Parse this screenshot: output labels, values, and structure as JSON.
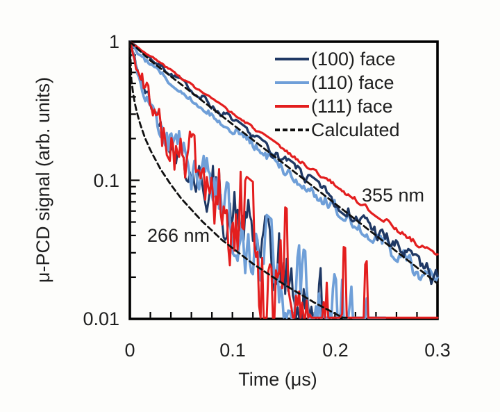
{
  "figure": {
    "background": "#fdfdfb",
    "text_color": "#1f1f1f",
    "frame_color": "#000000"
  },
  "chart_data": {
    "type": "line",
    "title": "",
    "xlabel": "Time (μs)",
    "ylabel": "μ-PCD signal (arb. units)",
    "x_axis": {
      "min": 0,
      "max": 0.3,
      "minor_tick_step": 0.02,
      "tick_labels": [
        {
          "value": 0,
          "label": "0"
        },
        {
          "value": 0.1,
          "label": "0.1"
        },
        {
          "value": 0.2,
          "label": "0.2"
        },
        {
          "value": 0.3,
          "label": "0.3"
        }
      ]
    },
    "y_axis": {
      "scale": "log",
      "min": 0.01,
      "max": 1,
      "tick_labels": [
        {
          "value": 1,
          "label": "1"
        },
        {
          "value": 0.1,
          "label": "0.1"
        },
        {
          "value": 0.01,
          "label": "0.01"
        }
      ],
      "minor_ticks": [
        0.9,
        0.8,
        0.7,
        0.6,
        0.5,
        0.4,
        0.3,
        0.2,
        0.09,
        0.08,
        0.07,
        0.06,
        0.05,
        0.04,
        0.03,
        0.02
      ]
    },
    "legend": {
      "position": "top-right-inside",
      "entries": [
        {
          "label": "(100) face",
          "color": "#1f3864",
          "style": "solid"
        },
        {
          "label": "(110) face",
          "color": "#6f9fd8",
          "style": "solid"
        },
        {
          "label": "(111) face",
          "color": "#e31e1e",
          "style": "solid"
        },
        {
          "label": "Calculated",
          "color": "#101010",
          "style": "dashed"
        }
      ]
    },
    "annotations": [
      {
        "text": "355 nm",
        "x": 0.256,
        "y": 0.079
      },
      {
        "text": "266 nm",
        "x": 0.047,
        "y": 0.04
      }
    ],
    "series": [
      {
        "id": "110-355",
        "name": "(110) face",
        "excitation": "355 nm",
        "color": "#6f9fd8",
        "style": "solid",
        "width": 3.8,
        "t_end": 0.3,
        "noise": {
          "seed": 12,
          "a0": 0.013,
          "a1": 0.04,
          "pow": 1,
          "clamp": 1.2
        },
        "points": [
          [
            0,
            1
          ],
          [
            0.01,
            0.805
          ],
          [
            0.02,
            0.679
          ],
          [
            0.03,
            0.586
          ],
          [
            0.05,
            0.447
          ],
          [
            0.08,
            0.303
          ],
          [
            0.1,
            0.234
          ],
          [
            0.13,
            0.159
          ],
          [
            0.15,
            0.122
          ],
          [
            0.18,
            0.083
          ],
          [
            0.2,
            0.064
          ],
          [
            0.23,
            0.044
          ],
          [
            0.25,
            0.034
          ],
          [
            0.28,
            0.023
          ],
          [
            0.3,
            0.018
          ]
        ]
      },
      {
        "id": "100-355",
        "name": "(100) face",
        "excitation": "355 nm",
        "color": "#1f3864",
        "style": "solid",
        "width": 3.4,
        "t_end": 0.3,
        "noise": {
          "seed": 7,
          "a0": 0.01,
          "a1": 0.045,
          "pow": 1,
          "clamp": 1.2
        },
        "points": [
          [
            0,
            1
          ],
          [
            0.02,
            0.768
          ],
          [
            0.04,
            0.59
          ],
          [
            0.06,
            0.453
          ],
          [
            0.08,
            0.348
          ],
          [
            0.1,
            0.267
          ],
          [
            0.12,
            0.205
          ],
          [
            0.14,
            0.157
          ],
          [
            0.16,
            0.121
          ],
          [
            0.18,
            0.093
          ],
          [
            0.2,
            0.071
          ],
          [
            0.22,
            0.055
          ],
          [
            0.24,
            0.042
          ],
          [
            0.26,
            0.032
          ],
          [
            0.28,
            0.025
          ],
          [
            0.3,
            0.019
          ]
        ]
      },
      {
        "id": "111-355",
        "name": "(111) face",
        "excitation": "355 nm",
        "color": "#e31e1e",
        "style": "solid",
        "width": 3.2,
        "t_end": 0.3,
        "noise": {
          "seed": 3,
          "a0": 0.004,
          "a1": 0.012,
          "pow": 1,
          "clamp": 1.2
        },
        "points": [
          [
            0,
            1
          ],
          [
            0.02,
            0.788
          ],
          [
            0.04,
            0.621
          ],
          [
            0.06,
            0.489
          ],
          [
            0.08,
            0.385
          ],
          [
            0.1,
            0.304
          ],
          [
            0.12,
            0.239
          ],
          [
            0.14,
            0.188
          ],
          [
            0.16,
            0.148
          ],
          [
            0.18,
            0.117
          ],
          [
            0.2,
            0.092
          ],
          [
            0.22,
            0.073
          ],
          [
            0.24,
            0.057
          ],
          [
            0.26,
            0.045
          ],
          [
            0.28,
            0.035
          ],
          [
            0.3,
            0.028
          ]
        ]
      },
      {
        "id": "100-266",
        "name": "(100) face",
        "excitation": "266 nm",
        "color": "#1f3864",
        "style": "solid",
        "width": 3.0,
        "t_end": 0.205,
        "noise": {
          "seed": 42,
          "a0": 0.02,
          "a1": 0.42,
          "pow": 1.4,
          "clamp": 1.5
        },
        "points": [
          [
            0,
            1
          ],
          [
            0.003,
            0.816
          ],
          [
            0.006,
            0.678
          ],
          [
            0.01,
            0.545
          ],
          [
            0.015,
            0.431
          ],
          [
            0.02,
            0.354
          ],
          [
            0.03,
            0.257
          ],
          [
            0.04,
            0.199
          ],
          [
            0.05,
            0.157
          ],
          [
            0.06,
            0.126
          ],
          [
            0.08,
            0.082
          ],
          [
            0.1,
            0.054
          ],
          [
            0.12,
            0.035
          ],
          [
            0.15,
            0.0185
          ],
          [
            0.18,
            0.0098
          ],
          [
            0.21,
            0.0058
          ]
        ]
      },
      {
        "id": "110-266",
        "name": "(110) face",
        "excitation": "266 nm",
        "color": "#6f9fd8",
        "style": "solid",
        "width": 3.6,
        "t_end": 0.25,
        "noise": {
          "seed": 88,
          "a0": 0.02,
          "a1": 0.45,
          "pow": 1.4,
          "clamp": 1.5
        },
        "points": [
          [
            0,
            1
          ],
          [
            0.003,
            0.816
          ],
          [
            0.006,
            0.678
          ],
          [
            0.01,
            0.545
          ],
          [
            0.015,
            0.431
          ],
          [
            0.02,
            0.354
          ],
          [
            0.03,
            0.257
          ],
          [
            0.04,
            0.199
          ],
          [
            0.05,
            0.157
          ],
          [
            0.06,
            0.126
          ],
          [
            0.08,
            0.082
          ],
          [
            0.1,
            0.054
          ],
          [
            0.12,
            0.035
          ],
          [
            0.15,
            0.0185
          ],
          [
            0.18,
            0.0098
          ],
          [
            0.21,
            0.0058
          ],
          [
            0.25,
            0.0028
          ]
        ]
      },
      {
        "id": "111-266",
        "name": "(111) face",
        "excitation": "266 nm",
        "color": "#e31e1e",
        "style": "solid",
        "width": 3.0,
        "t_end": 0.3,
        "noise": {
          "seed": 5,
          "a0": 0.03,
          "a1": 0.78,
          "pow": 2.2,
          "clamp": 1.3
        },
        "points": [
          [
            0,
            1
          ],
          [
            0.003,
            0.816
          ],
          [
            0.006,
            0.678
          ],
          [
            0.01,
            0.545
          ],
          [
            0.015,
            0.431
          ],
          [
            0.02,
            0.354
          ],
          [
            0.03,
            0.257
          ],
          [
            0.04,
            0.199
          ],
          [
            0.05,
            0.157
          ],
          [
            0.06,
            0.126
          ],
          [
            0.08,
            0.082
          ],
          [
            0.1,
            0.054
          ],
          [
            0.12,
            0.035
          ],
          [
            0.15,
            0.0185
          ],
          [
            0.18,
            0.0098
          ],
          [
            0.21,
            0.0058
          ],
          [
            0.25,
            0.0028
          ],
          [
            0.3,
            0.0012
          ]
        ]
      },
      {
        "id": "calc-355",
        "name": "Calculated",
        "excitation": "355 nm",
        "color": "#101010",
        "style": "dashed",
        "width": 2.8,
        "t_end": 0.3,
        "points": [
          [
            0,
            1
          ],
          [
            0.02,
            0.731
          ],
          [
            0.05,
            0.492
          ],
          [
            0.1,
            0.254
          ],
          [
            0.15,
            0.132
          ],
          [
            0.2,
            0.068
          ],
          [
            0.25,
            0.035
          ],
          [
            0.3,
            0.018
          ]
        ]
      },
      {
        "id": "calc-266",
        "name": "Calculated",
        "excitation": "266 nm",
        "color": "#101010",
        "style": "dashed",
        "width": 2.8,
        "t_end": 0.212,
        "points": [
          [
            0,
            1
          ],
          [
            0.001,
            0.58
          ],
          [
            0.002,
            0.488
          ],
          [
            0.004,
            0.388
          ],
          [
            0.006,
            0.328
          ],
          [
            0.008,
            0.287
          ],
          [
            0.01,
            0.255
          ],
          [
            0.015,
            0.2
          ],
          [
            0.02,
            0.165
          ],
          [
            0.03,
            0.12
          ],
          [
            0.04,
            0.093
          ],
          [
            0.05,
            0.074
          ],
          [
            0.07,
            0.051
          ],
          [
            0.09,
            0.037
          ],
          [
            0.12,
            0.025
          ],
          [
            0.15,
            0.0178
          ],
          [
            0.18,
            0.0131
          ],
          [
            0.21,
            0.01
          ]
        ]
      }
    ]
  }
}
